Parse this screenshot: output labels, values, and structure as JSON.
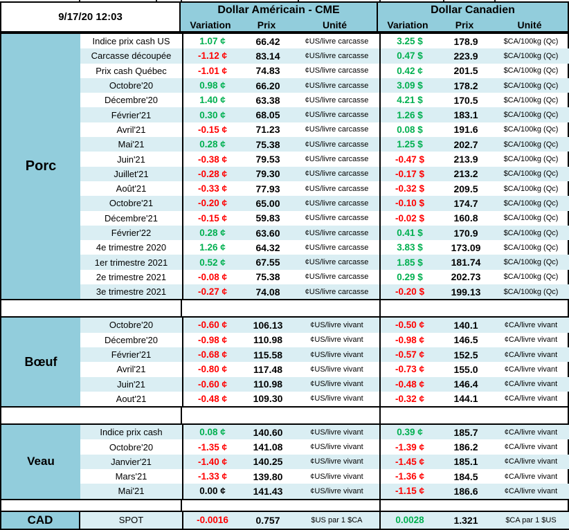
{
  "meta": {
    "timestamp": "9/17/20 12:03"
  },
  "colors": {
    "header_bg": "#92CDDC",
    "stripe_bg": "#DAEEF3",
    "positive": "#00B050",
    "negative": "#FF0000",
    "neutral": "#000000"
  },
  "header": {
    "us_title": "Dollar Américain - CME",
    "ca_title": "Dollar Canadien",
    "columns": {
      "variation": "Variation",
      "prix": "Prix",
      "unite": "Unité"
    }
  },
  "sections": [
    {
      "id": "porc",
      "name": "Porc",
      "stripe_offset": 1,
      "us_unit": "¢US/livre carcasse",
      "ca_unit": "$CA/100kg (Qc)",
      "rows": [
        {
          "label": "Indice prix cash US",
          "us_var": "1.07 ¢",
          "us_prix": "66.42",
          "ca_var": "3.25 $",
          "ca_prix": "178.9"
        },
        {
          "label": "Carcasse découpée",
          "us_var": "-1.12 ¢",
          "us_prix": "83.14",
          "ca_var": "0.47 $",
          "ca_prix": "223.9"
        },
        {
          "label": "Prix cash Québec",
          "us_var": "-1.01 ¢",
          "us_prix": "74.83",
          "ca_var": "0.42 ¢",
          "ca_prix": "201.5"
        },
        {
          "label": "Octobre'20",
          "us_var": "0.98 ¢",
          "us_prix": "66.20",
          "ca_var": "3.09 $",
          "ca_prix": "178.2"
        },
        {
          "label": "Décembre'20",
          "us_var": "1.40 ¢",
          "us_prix": "63.38",
          "ca_var": "4.21 $",
          "ca_prix": "170.5"
        },
        {
          "label": "Février'21",
          "us_var": "0.30 ¢",
          "us_prix": "68.05",
          "ca_var": "1.26 $",
          "ca_prix": "183.1"
        },
        {
          "label": "Avril'21",
          "us_var": "-0.15 ¢",
          "us_prix": "71.23",
          "ca_var": "0.08 $",
          "ca_prix": "191.6"
        },
        {
          "label": "Mai'21",
          "us_var": "0.28 ¢",
          "us_prix": "75.38",
          "ca_var": "1.25 $",
          "ca_prix": "202.7"
        },
        {
          "label": "Juin'21",
          "us_var": "-0.38 ¢",
          "us_prix": "79.53",
          "ca_var": "-0.47 $",
          "ca_prix": "213.9"
        },
        {
          "label": "Juillet'21",
          "us_var": "-0.28 ¢",
          "us_prix": "79.30",
          "ca_var": "-0.17 $",
          "ca_prix": "213.2"
        },
        {
          "label": "Août'21",
          "us_var": "-0.33 ¢",
          "us_prix": "77.93",
          "ca_var": "-0.32 $",
          "ca_prix": "209.5"
        },
        {
          "label": "Octobre'21",
          "us_var": "-0.20 ¢",
          "us_prix": "65.00",
          "ca_var": "-0.10 $",
          "ca_prix": "174.7"
        },
        {
          "label": "Décembre'21",
          "us_var": "-0.15 ¢",
          "us_prix": "59.83",
          "ca_var": "-0.02 $",
          "ca_prix": "160.8"
        },
        {
          "label": "Février'22",
          "us_var": "0.28 ¢",
          "us_prix": "63.60",
          "ca_var": "0.41 $",
          "ca_prix": "170.9"
        },
        {
          "label": "4e trimestre 2020",
          "us_var": "1.26 ¢",
          "us_prix": "64.32",
          "ca_var": "3.83 $",
          "ca_prix": "173.09"
        },
        {
          "label": "1er trimestre 2021",
          "us_var": "0.52 ¢",
          "us_prix": "67.55",
          "ca_var": "1.85 $",
          "ca_prix": "181.74"
        },
        {
          "label": "2e trimestre 2021",
          "us_var": "-0.08 ¢",
          "us_prix": "75.38",
          "ca_var": "0.29 $",
          "ca_prix": "202.73"
        },
        {
          "label": "3e trimestre 2021",
          "us_var": "-0.27 ¢",
          "us_prix": "74.08",
          "ca_var": "-0.20 $",
          "ca_prix": "199.13"
        }
      ]
    },
    {
      "id": "boeuf",
      "name": "Bœuf",
      "stripe_offset": 0,
      "us_unit": "¢US/livre vivant",
      "ca_unit": "¢CA/livre vivant",
      "rows": [
        {
          "label": "Octobre'20",
          "us_var": "-0.60 ¢",
          "us_prix": "106.13",
          "ca_var": "-0.50 ¢",
          "ca_prix": "140.1"
        },
        {
          "label": "Décembre'20",
          "us_var": "-0.98 ¢",
          "us_prix": "110.98",
          "ca_var": "-0.98 ¢",
          "ca_prix": "146.5"
        },
        {
          "label": "Février'21",
          "us_var": "-0.68 ¢",
          "us_prix": "115.58",
          "ca_var": "-0.57 ¢",
          "ca_prix": "152.5"
        },
        {
          "label": "Avril'21",
          "us_var": "-0.80 ¢",
          "us_prix": "117.48",
          "ca_var": "-0.73 ¢",
          "ca_prix": "155.0"
        },
        {
          "label": "Juin'21",
          "us_var": "-0.60 ¢",
          "us_prix": "110.98",
          "ca_var": "-0.48 ¢",
          "ca_prix": "146.4"
        },
        {
          "label": "Aout'21",
          "us_var": "-0.48 ¢",
          "us_prix": "109.30",
          "ca_var": "-0.32 ¢",
          "ca_prix": "144.1"
        }
      ]
    },
    {
      "id": "veau",
      "name": "Veau",
      "stripe_offset": 0,
      "us_unit": "¢US/livre vivant",
      "ca_unit": "¢CA/livre vivant",
      "rows": [
        {
          "label": "Indice prix cash",
          "us_var": "0.08 ¢",
          "us_prix": "140.60",
          "ca_var": "0.39 ¢",
          "ca_prix": "185.7"
        },
        {
          "label": "Octobre'20",
          "us_var": "-1.35 ¢",
          "us_prix": "141.08",
          "ca_var": "-1.39 ¢",
          "ca_prix": "186.2"
        },
        {
          "label": "Janvier'21",
          "us_var": "-1.40 ¢",
          "us_prix": "140.25",
          "ca_var": "-1.45 ¢",
          "ca_prix": "185.1"
        },
        {
          "label": "Mars'21",
          "us_var": "-1.33 ¢",
          "us_prix": "139.80",
          "ca_var": "-1.36 ¢",
          "ca_prix": "184.5"
        },
        {
          "label": "Mai'21",
          "us_var": "0.00 ¢",
          "us_prix": "141.43",
          "ca_var": "-1.15 ¢",
          "ca_prix": "186.6"
        }
      ]
    },
    {
      "id": "cad",
      "name": "CAD",
      "stripe_offset": 0,
      "us_unit": "$US par 1 $CA",
      "ca_unit": "$CA par 1 $US",
      "rows": [
        {
          "label": "SPOT",
          "us_var": "-0.0016",
          "us_prix": "0.757",
          "ca_var": "0.0028",
          "ca_prix": "1.321"
        }
      ]
    }
  ]
}
